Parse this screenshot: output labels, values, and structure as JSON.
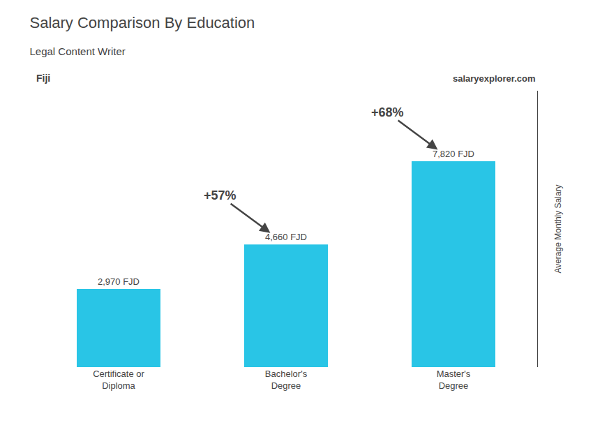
{
  "chart_data": {
    "type": "bar",
    "title": "Salary Comparison By Education",
    "subtitle": "Legal Content Writer",
    "country": "Fiji",
    "source": "salaryexplorer.com",
    "ylabel": "Average Monthly Salary",
    "categories": [
      "Certificate or\nDiploma",
      "Bachelor's\nDegree",
      "Master's\nDegree"
    ],
    "values": [
      2970,
      4660,
      7820
    ],
    "value_labels": [
      "2,970 FJD",
      "4,660 FJD",
      "7,820 FJD"
    ],
    "data_labels": true,
    "annotations": [
      "+57%",
      "+68%"
    ],
    "color": "#29c5e6",
    "ylim": [
      0,
      10500
    ],
    "tick_labels": "x",
    "grid": false
  }
}
